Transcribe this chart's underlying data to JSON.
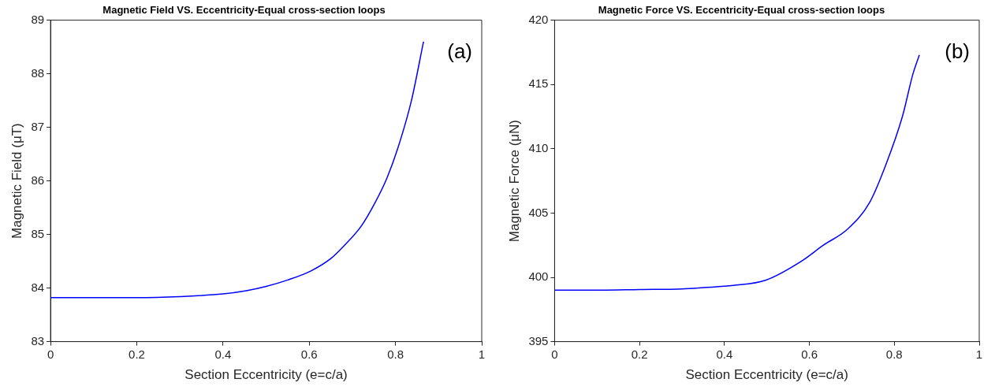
{
  "chart_data": [
    {
      "type": "line",
      "title": "Magnetic Field VS. Eccentricity-Equal cross-section loops",
      "xlabel": "Section Eccentricity (e=c/a)",
      "ylabel": "Magnetic Field (μT)",
      "annotations": [
        "(a)"
      ],
      "series": [
        {
          "color": "#0000ff",
          "x": [
            0,
            0.1,
            0.2,
            0.3,
            0.4,
            0.454,
            0.5,
            0.55,
            0.604,
            0.65,
            0.682,
            0.72,
            0.753,
            0.78,
            0.805,
            0.837,
            0.865
          ],
          "values": [
            83.82,
            83.82,
            83.82,
            83.84,
            83.89,
            83.95,
            84.03,
            84.15,
            84.32,
            84.55,
            84.8,
            85.15,
            85.6,
            86.05,
            86.6,
            87.5,
            88.6
          ]
        }
      ],
      "xlim": [
        0,
        1
      ],
      "xticks": [
        0,
        0.2,
        0.4,
        0.6,
        0.8,
        1
      ],
      "ylim": [
        83,
        89
      ],
      "yticks": [
        83,
        84,
        85,
        86,
        87,
        88,
        89
      ],
      "grid": false,
      "legend": false,
      "marker": "none",
      "line_style": "solid"
    },
    {
      "type": "line",
      "title": "Magnetic Force VS. Eccentricity-Equal cross-section loops",
      "xlabel": "Section Eccentricity (e=c/a)",
      "ylabel": "Magnetic Force (μN)",
      "annotations": [
        "(b)"
      ],
      "series": [
        {
          "color": "#0000ff",
          "x": [
            0,
            0.1,
            0.2,
            0.3,
            0.35,
            0.421,
            0.498,
            0.581,
            0.633,
            0.69,
            0.742,
            0.78,
            0.819,
            0.844,
            0.859
          ],
          "values": [
            399,
            399,
            399.05,
            399.1,
            399.2,
            399.37,
            399.79,
            401.25,
            402.5,
            403.75,
            405.83,
            408.75,
            412.5,
            415.83,
            417.29
          ]
        }
      ],
      "xlim": [
        0,
        1
      ],
      "xticks": [
        0,
        0.2,
        0.4,
        0.6,
        0.8,
        1
      ],
      "ylim": [
        395,
        420
      ],
      "yticks": [
        395,
        400,
        405,
        410,
        415,
        420
      ],
      "grid": false,
      "legend": false,
      "marker": "none",
      "line_style": "solid"
    }
  ]
}
